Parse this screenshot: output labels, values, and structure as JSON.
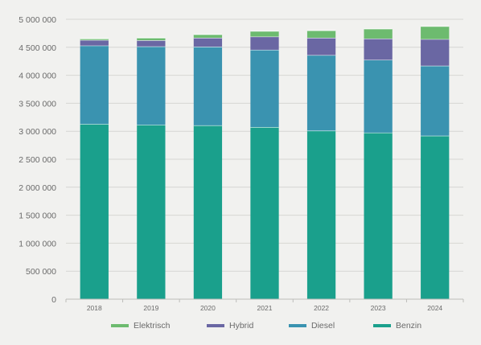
{
  "chart_data": {
    "type": "bar",
    "stacked": true,
    "categories": [
      "2018",
      "2019",
      "2020",
      "2021",
      "2022",
      "2023",
      "2024"
    ],
    "series": [
      {
        "name": "Benzin",
        "color": "#1aa08c",
        "values": [
          3130000,
          3115000,
          3105000,
          3075000,
          3010000,
          2975000,
          2920000
        ]
      },
      {
        "name": "Diesel",
        "color": "#3a93b0",
        "values": [
          1400000,
          1400000,
          1405000,
          1380000,
          1350000,
          1300000,
          1250000
        ]
      },
      {
        "name": "Hybrid",
        "color": "#6a67a3",
        "values": [
          100000,
          110000,
          160000,
          235000,
          310000,
          380000,
          475000
        ]
      },
      {
        "name": "Elektrisch",
        "color": "#6dbb6f",
        "values": [
          25000,
          45000,
          60000,
          100000,
          130000,
          175000,
          230000
        ]
      }
    ],
    "legend_order": [
      "Elektrisch",
      "Hybrid",
      "Diesel",
      "Benzin"
    ],
    "ylim": [
      0,
      5000000
    ],
    "yticks": [
      0,
      500000,
      1000000,
      1500000,
      2000000,
      2500000,
      3000000,
      3500000,
      4000000,
      4500000,
      5000000
    ],
    "ytick_labels": [
      "0",
      "500 000",
      "1 000 000",
      "1 500 000",
      "2 000 000",
      "2 500 000",
      "3 000 000",
      "3 500 000",
      "4 000 000",
      "4 500 000",
      "5 000 000"
    ],
    "grid": true,
    "legend_position": "bottom",
    "title": "",
    "xlabel": "",
    "ylabel": ""
  }
}
